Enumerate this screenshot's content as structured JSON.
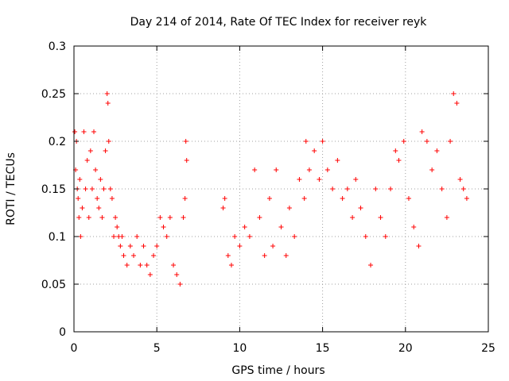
{
  "chart_data": {
    "type": "scatter",
    "title": "Day 214 of 2014, Rate Of TEC Index for receiver reyk",
    "xlabel": "GPS time / hours",
    "ylabel": "ROTI / TECUs",
    "xlim": [
      0,
      25
    ],
    "ylim": [
      0,
      0.3
    ],
    "xticks": [
      0,
      5,
      10,
      15,
      20,
      25
    ],
    "xtick_labels": [
      "0",
      "5",
      "10",
      "15",
      "20",
      "25"
    ],
    "yticks": [
      0,
      0.05,
      0.1,
      0.15,
      0.2,
      0.25,
      0.3
    ],
    "ytick_labels": [
      "0",
      "0.05",
      "0.1",
      "0.15",
      "0.2",
      "0.25",
      "0.3"
    ],
    "grid": true,
    "marker": "+",
    "series": [
      {
        "name": "ROTI",
        "color": "#ff0000",
        "x": [
          0.05,
          0.1,
          0.15,
          0.2,
          0.25,
          0.3,
          0.35,
          0.4,
          0.5,
          0.6,
          0.7,
          0.8,
          0.9,
          1.0,
          1.1,
          1.2,
          1.3,
          1.4,
          1.5,
          1.6,
          1.7,
          1.8,
          1.9,
          2.0,
          2.05,
          2.1,
          2.2,
          2.3,
          2.4,
          2.5,
          2.6,
          2.7,
          2.8,
          2.9,
          3.0,
          3.2,
          3.4,
          3.6,
          3.8,
          4.0,
          4.2,
          4.4,
          4.6,
          4.8,
          5.0,
          5.2,
          5.4,
          5.6,
          5.8,
          6.0,
          6.2,
          6.4,
          6.6,
          6.7,
          6.75,
          6.8,
          9.0,
          9.1,
          9.3,
          9.5,
          9.7,
          10.0,
          10.3,
          10.6,
          10.9,
          11.2,
          11.5,
          11.8,
          12.0,
          12.2,
          12.5,
          12.8,
          13.0,
          13.3,
          13.6,
          13.9,
          14.0,
          14.2,
          14.5,
          14.8,
          15.0,
          15.3,
          15.6,
          15.9,
          16.2,
          16.5,
          16.8,
          17.0,
          17.3,
          17.6,
          17.9,
          18.2,
          18.5,
          18.8,
          19.1,
          19.4,
          19.6,
          19.9,
          20.2,
          20.5,
          20.8,
          21.0,
          21.3,
          21.6,
          21.9,
          22.2,
          22.5,
          22.7,
          22.9,
          23.1,
          23.3,
          23.5,
          23.7
        ],
        "y": [
          0.21,
          0.17,
          0.2,
          0.15,
          0.14,
          0.12,
          0.16,
          0.1,
          0.13,
          0.21,
          0.15,
          0.18,
          0.12,
          0.19,
          0.15,
          0.21,
          0.17,
          0.14,
          0.13,
          0.16,
          0.12,
          0.15,
          0.19,
          0.25,
          0.24,
          0.2,
          0.15,
          0.14,
          0.1,
          0.12,
          0.11,
          0.1,
          0.09,
          0.1,
          0.08,
          0.07,
          0.09,
          0.08,
          0.1,
          0.07,
          0.09,
          0.07,
          0.06,
          0.08,
          0.09,
          0.12,
          0.11,
          0.1,
          0.12,
          0.07,
          0.06,
          0.05,
          0.12,
          0.14,
          0.2,
          0.18,
          0.13,
          0.14,
          0.08,
          0.07,
          0.1,
          0.09,
          0.11,
          0.1,
          0.17,
          0.12,
          0.08,
          0.14,
          0.09,
          0.17,
          0.11,
          0.08,
          0.13,
          0.1,
          0.16,
          0.14,
          0.2,
          0.17,
          0.19,
          0.16,
          0.2,
          0.17,
          0.15,
          0.18,
          0.14,
          0.15,
          0.12,
          0.16,
          0.13,
          0.1,
          0.07,
          0.15,
          0.12,
          0.1,
          0.15,
          0.19,
          0.18,
          0.2,
          0.14,
          0.11,
          0.09,
          0.21,
          0.2,
          0.17,
          0.19,
          0.15,
          0.12,
          0.2,
          0.25,
          0.24,
          0.16,
          0.15,
          0.14
        ]
      }
    ]
  },
  "colors": {
    "points": "#ff0000",
    "grid": "#a0a0a0",
    "frame": "#000000"
  }
}
